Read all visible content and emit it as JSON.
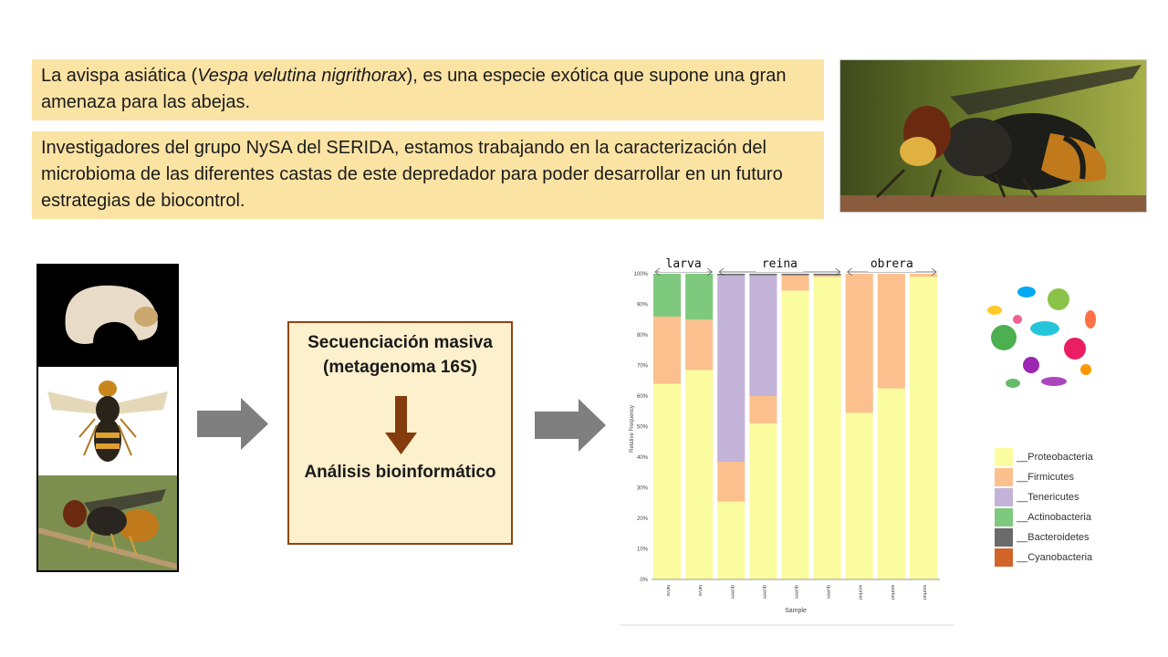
{
  "intro": {
    "part1": "La avispa asiática (",
    "species": "Vespa velutina nigrithorax",
    "part2": "), es una especie exótica que supone una gran amenaza para las abejas."
  },
  "research_text": "Investigadores del grupo NySA del SERIDA, estamos trabajando en la caracterización del microbioma de las diferentes castas de este depredador para poder desarrollar en un futuro estrategias de biocontrol.",
  "process": {
    "step1": "Secuenciación masiva (metagenoma 16S)",
    "step2": "Análisis bioinformático"
  },
  "colors": {
    "box": "#fbe3a4",
    "process_box": "#fdf0cc",
    "process_border": "#8b4513",
    "arrow_gray": "#7f7f7f",
    "arrow_brown": "#843c0c"
  },
  "icons": [
    "larva-photo",
    "wasp-specimen-photo",
    "hornet-photo",
    "microbes-illustration",
    "right-arrow-icon",
    "down-arrow-icon"
  ],
  "chart_data": {
    "type": "bar",
    "stacked": true,
    "groups": [
      "larva",
      "reina",
      "obrera"
    ],
    "categories": [
      "larva",
      "larva",
      "queen",
      "queen",
      "queen",
      "queen",
      "worker",
      "worker",
      "worker"
    ],
    "xlabel": "Sample",
    "ylabel": "Relative Frequency",
    "ylim": [
      0,
      100
    ],
    "yticks": [
      "0%",
      "10%",
      "20%",
      "30%",
      "40%",
      "50%",
      "60%",
      "70%",
      "80%",
      "90%",
      "100%"
    ],
    "series": [
      {
        "name": "__Proteobacteria",
        "color": "#fbfb9f",
        "values": [
          64,
          68.5,
          25.5,
          51,
          94.5,
          99,
          54.5,
          62.5,
          99
        ]
      },
      {
        "name": "__Firmicutes",
        "color": "#fbc08e",
        "values": [
          22,
          16.5,
          13,
          9,
          5,
          0.5,
          45.5,
          37.5,
          1
        ]
      },
      {
        "name": "__Tenericutes",
        "color": "#c3b3d8",
        "values": [
          0,
          0,
          61,
          39.5,
          0,
          0,
          0,
          0,
          0
        ]
      },
      {
        "name": "__Actinobacteria",
        "color": "#7fc97f",
        "values": [
          14,
          15,
          0,
          0,
          0,
          0,
          0,
          0,
          0
        ]
      },
      {
        "name": "__Bacteroidetes",
        "color": "#6b6b6b",
        "values": [
          0,
          0,
          0.5,
          0.5,
          0.5,
          0.5,
          0,
          0,
          0
        ]
      },
      {
        "name": "__Cyanobacteria",
        "color": "#d2642a",
        "values": [
          0,
          0,
          0,
          0,
          0,
          0,
          0,
          0,
          0
        ]
      }
    ]
  }
}
